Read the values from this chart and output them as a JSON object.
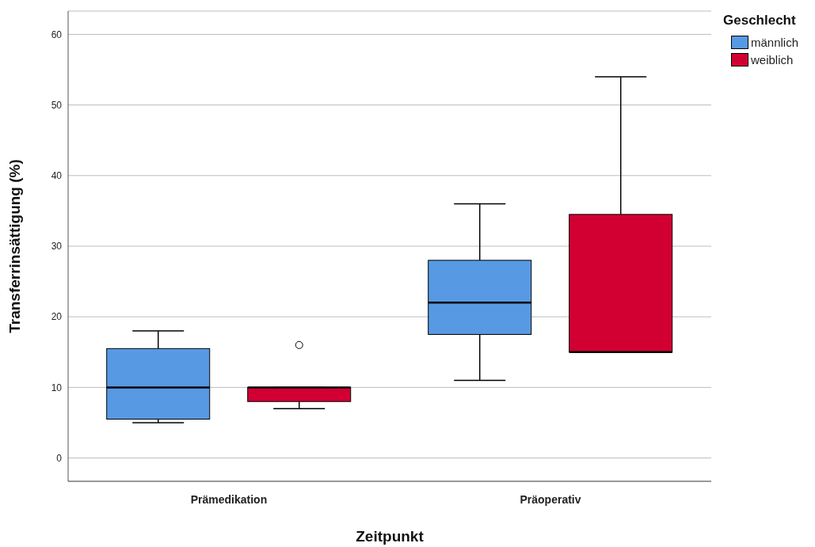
{
  "chart_data": {
    "type": "box",
    "xlabel": "Zeitpunkt",
    "ylabel": "Transferrinsättigung (%)",
    "legend_title": "Geschlecht",
    "legend": "top right",
    "grid": "y",
    "categories": [
      "Prämedikation",
      "Präoperativ"
    ],
    "ylim": [
      -3.3,
      63.3
    ],
    "yticks": [
      0,
      10,
      20,
      30,
      40,
      50,
      60
    ],
    "series": [
      {
        "name": "männlich",
        "color": "#5799e3",
        "boxes": [
          {
            "low": 5,
            "q1": 5.5,
            "median": 10,
            "q3": 15.5,
            "high": 18
          },
          {
            "low": 11,
            "q1": 17.5,
            "median": 22,
            "q3": 28,
            "high": 36
          }
        ]
      },
      {
        "name": "weiblich",
        "color": "#d20032",
        "boxes": [
          {
            "low": 7,
            "q1": 8,
            "median": 10,
            "q3": 10,
            "high": 10,
            "outliers": [
              16
            ]
          },
          {
            "low": 15,
            "q1": 15,
            "median": 15,
            "q3": 34.5,
            "high": 54
          }
        ]
      }
    ]
  }
}
